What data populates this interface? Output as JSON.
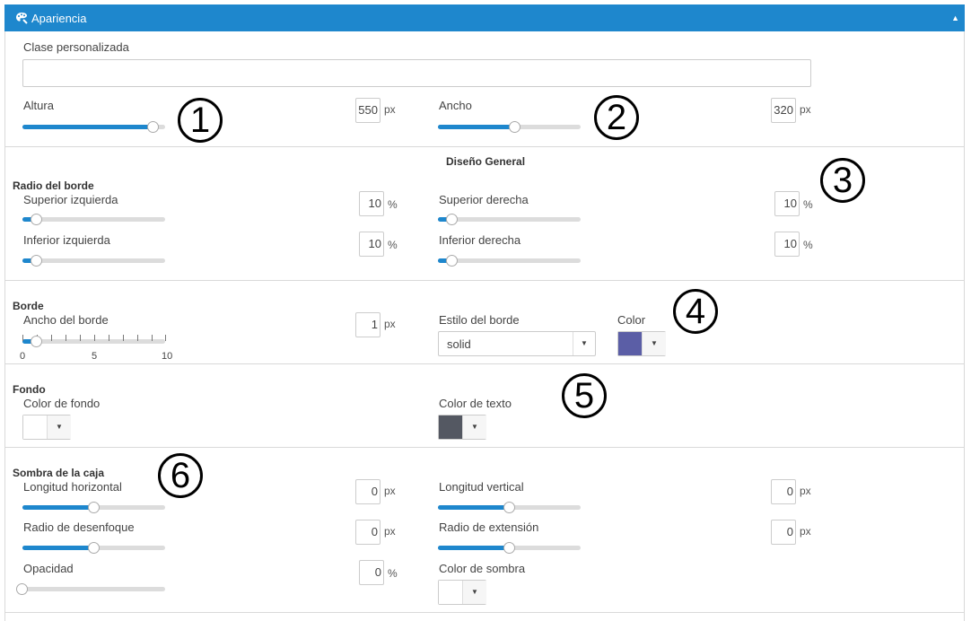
{
  "header": {
    "title": "Apariencia",
    "icon": "palette-icon"
  },
  "custom_class": {
    "label": "Clase personalizada",
    "value": ""
  },
  "altura": {
    "label": "Altura",
    "value": "550",
    "unit": "px",
    "level": 0.92
  },
  "ancho": {
    "label": "Ancho",
    "value": "320",
    "unit": "px",
    "level": 0.54
  },
  "diseno": {
    "title": "Diseño General"
  },
  "radio": {
    "title": "Radio del borde",
    "sup_izq": {
      "label": "Superior izquierda",
      "value": "10",
      "unit": "%",
      "level": 0.1
    },
    "sup_der": {
      "label": "Superior derecha",
      "value": "10",
      "unit": "%",
      "level": 0.1
    },
    "inf_izq": {
      "label": "Inferior izquierda",
      "value": "10",
      "unit": "%",
      "level": 0.1
    },
    "inf_der": {
      "label": "Inferior derecha",
      "value": "10",
      "unit": "%",
      "level": 0.1
    }
  },
  "borde": {
    "title": "Borde",
    "ancho": {
      "label": "Ancho del borde",
      "value": "1",
      "unit": "px",
      "level": 0.1,
      "ticks": [
        "0",
        "5",
        "10"
      ]
    },
    "estilo": {
      "label": "Estilo del borde",
      "value": "solid"
    },
    "color": {
      "label": "Color",
      "swatch": "#5b5ea6"
    }
  },
  "fondo": {
    "title": "Fondo",
    "color_fondo": {
      "label": "Color de fondo",
      "swatch": "#ffffff"
    },
    "color_texto": {
      "label": "Color de texto",
      "swatch": "#545862"
    }
  },
  "sombra": {
    "title": "Sombra de la caja",
    "horizontal": {
      "label": "Longitud horizontal",
      "value": "0",
      "unit": "px",
      "level": 0.5
    },
    "vertical": {
      "label": "Longitud vertical",
      "value": "0",
      "unit": "px",
      "level": 0.5
    },
    "desenfoque": {
      "label": "Radio de desenfoque",
      "value": "0",
      "unit": "px",
      "level": 0.5
    },
    "extension": {
      "label": "Radio de extensión",
      "value": "0",
      "unit": "px",
      "level": 0.5
    },
    "opacidad": {
      "label": "Opacidad",
      "value": "0",
      "unit": "%",
      "level": 0.0
    },
    "color": {
      "label": "Color de sombra",
      "swatch": "#ffffff"
    }
  },
  "callouts": [
    "1",
    "2",
    "3",
    "4",
    "5",
    "6"
  ],
  "colors": {
    "accent": "#1e87cd"
  }
}
